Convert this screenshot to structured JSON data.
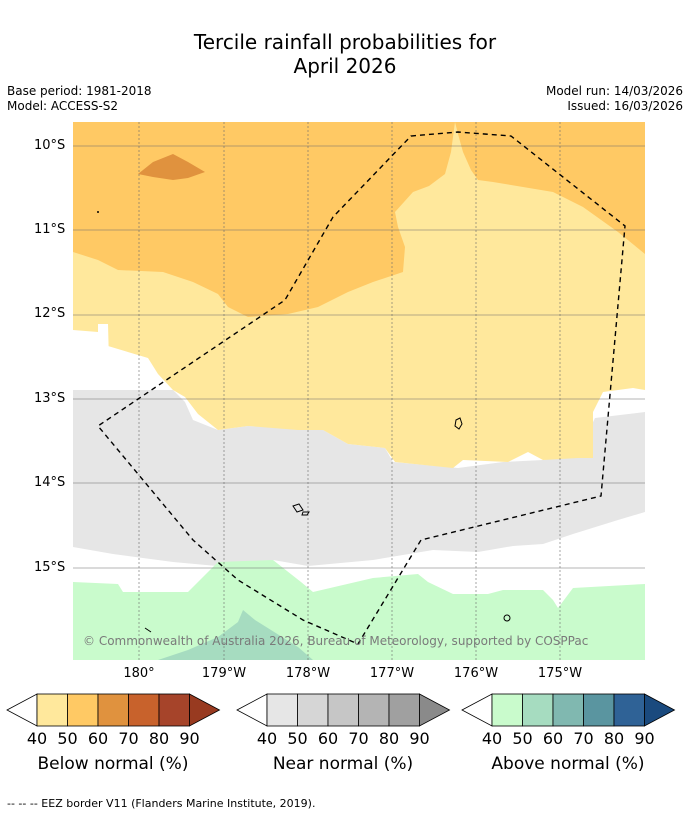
{
  "title": {
    "line1": "Tercile rainfall probabilities for",
    "line2": "April 2026"
  },
  "meta": {
    "base_period": "Base period: 1981-2018",
    "model": "Model: ACCESS-S2",
    "model_run": "Model run: 14/03/2026",
    "issued": "Issued: 16/03/2026"
  },
  "map": {
    "lat_labels": [
      "10°S",
      "11°S",
      "12°S",
      "13°S",
      "14°S",
      "15°S"
    ],
    "lon_labels": [
      "180°",
      "179°W",
      "178°W",
      "177°W",
      "176°W",
      "175°W"
    ],
    "copyright": "© Commonwealth of Australia 2026, Bureau of Meteorology, supported by COSPPac"
  },
  "colorbars": [
    {
      "label": "Below normal (%)",
      "ticks": [
        "40",
        "50",
        "60",
        "70",
        "80",
        "90"
      ],
      "colors": [
        "#ffe89c",
        "#ffc964",
        "#e0923e",
        "#c8622c",
        "#a6442a",
        "#983a20"
      ]
    },
    {
      "label": "Near normal (%)",
      "ticks": [
        "40",
        "50",
        "60",
        "70",
        "80",
        "90"
      ],
      "colors": [
        "#e6e6e6",
        "#d6d6d6",
        "#c6c6c6",
        "#b4b4b4",
        "#a0a0a0",
        "#8a8a8a"
      ]
    },
    {
      "label": "Above normal (%)",
      "ticks": [
        "40",
        "50",
        "60",
        "70",
        "80",
        "90"
      ],
      "colors": [
        "#c9fbcc",
        "#a6dcc0",
        "#80b8b0",
        "#5a95a0",
        "#2f6296",
        "#1a4a7e"
      ]
    }
  ],
  "footer": "--  --  -- EEZ border V11 (Flanders Marine Institute, 2019)."
}
